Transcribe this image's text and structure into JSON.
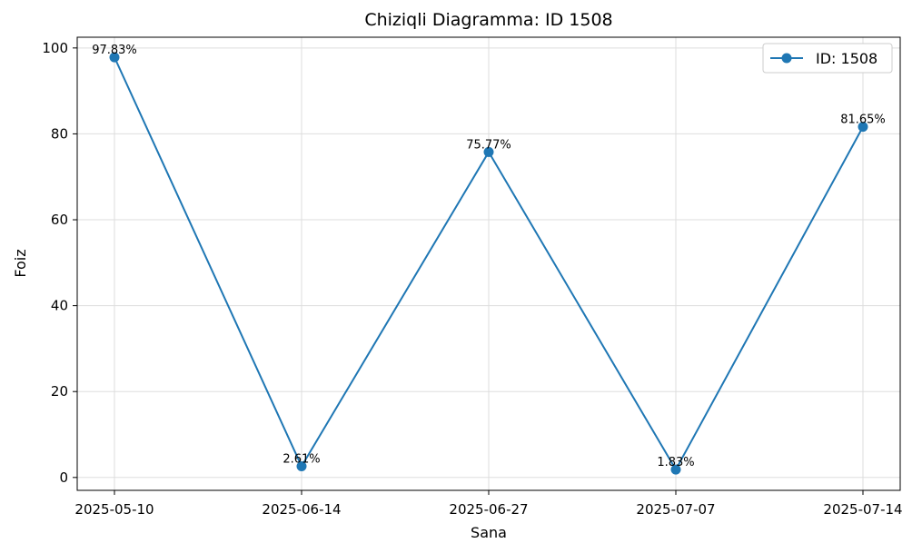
{
  "chart_data": {
    "type": "line",
    "title": "Chiziqli Diagramma: ID 1508",
    "xlabel": "Sana",
    "ylabel": "Foiz",
    "categories": [
      "2025-05-10",
      "2025-06-14",
      "2025-06-27",
      "2025-07-07",
      "2025-07-14"
    ],
    "series": [
      {
        "name": "ID: 1508",
        "values": [
          97.83,
          2.61,
          75.77,
          1.83,
          81.65
        ],
        "labels": [
          "97.83%",
          "2.61%",
          "75.77%",
          "1.83%",
          "81.65%"
        ],
        "color": "#1f77b4",
        "marker": "circle"
      }
    ],
    "yticks": [
      0,
      20,
      40,
      60,
      80,
      100
    ],
    "ylim": [
      -3,
      102.5
    ],
    "grid": true,
    "legend_position": "top-right"
  }
}
